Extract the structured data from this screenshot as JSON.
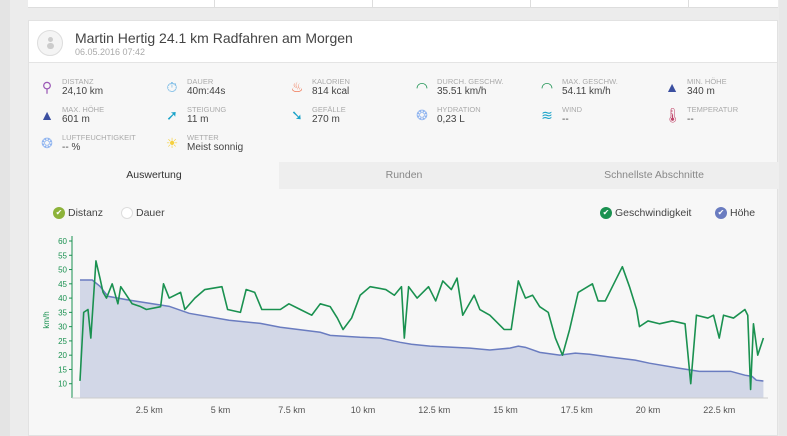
{
  "activity": {
    "user": "Martin Hertig",
    "title": "24.1 km Radfahren am Morgen",
    "date": "06.05.2016 07:42"
  },
  "stats": [
    {
      "label": "Distanz",
      "value": "24,10 km",
      "icon": "pin-icon",
      "color": "#9b59b6"
    },
    {
      "label": "Dauer",
      "value": "40m:44s",
      "icon": "stopwatch-icon",
      "color": "#5dade2"
    },
    {
      "label": "Kalorien",
      "value": "814 kcal",
      "icon": "flame-icon",
      "color": "#f0643c"
    },
    {
      "label": "Durch. Geschw.",
      "value": "35.51 km/h",
      "icon": "speedometer-icon",
      "color": "#1a9150"
    },
    {
      "label": "Max. Geschw.",
      "value": "54.11 km/h",
      "icon": "speedometer-icon",
      "color": "#1a9150"
    },
    {
      "label": "Min. Höhe",
      "value": "340 m",
      "icon": "mountain-icon",
      "color": "#3b4fa0"
    },
    {
      "label": "Max. Höhe",
      "value": "601 m",
      "icon": "mountain-icon",
      "color": "#3b4fa0"
    },
    {
      "label": "Steigung",
      "value": "11 m",
      "icon": "ascent-icon",
      "color": "#1aa3c9"
    },
    {
      "label": "Gefälle",
      "value": "270 m",
      "icon": "descent-icon",
      "color": "#1aa3c9"
    },
    {
      "label": "Hydration",
      "value": "0,23 L",
      "icon": "drops-icon",
      "color": "#8fb4f0"
    },
    {
      "label": "Wind",
      "value": "--",
      "icon": "wind-icon",
      "color": "#1aa3c9"
    },
    {
      "label": "Temperatur",
      "value": "--",
      "icon": "thermometer-icon",
      "color": "#c0456a"
    },
    {
      "label": "Luftfeuchtigkeit",
      "value": "-- %",
      "icon": "drops-icon",
      "color": "#8fb4f0"
    },
    {
      "label": "Wetter",
      "value": "Meist sonnig",
      "icon": "sun-icon",
      "color": "#f5d040"
    }
  ],
  "tabs": [
    "Auswertung",
    "Runden",
    "Schnellste Abschnitte"
  ],
  "toggles": {
    "distance": "Distanz",
    "duration": "Dauer",
    "speed": "Geschwindigkeit",
    "elevation": "Höhe"
  },
  "colors": {
    "speed": "#1a9150",
    "elevation": "#6a7cc0",
    "elevation_fill": "#d2d7e7",
    "distance_toggle": "#8db33a"
  },
  "chart_data": {
    "type": "line",
    "ylabel": "km/h",
    "ylim": [
      5,
      60
    ],
    "yticks": [
      10,
      15,
      20,
      25,
      30,
      35,
      40,
      45,
      50,
      55,
      60
    ],
    "xlim": [
      0,
      24.5
    ],
    "xticks": [
      2.5,
      5,
      7.5,
      10,
      12.5,
      15,
      17.5,
      20,
      22.5
    ],
    "xtick_labels": [
      "2.5 km",
      "5 km",
      "7.5 km",
      "10 km",
      "12.5 km",
      "15 km",
      "17.5 km",
      "20 km",
      "22.5 km"
    ],
    "elevation_range": [
      296,
      702
    ],
    "series": [
      {
        "name": "Geschwindigkeit",
        "unit": "km/h",
        "points": [
          [
            0.07,
            11
          ],
          [
            0.2,
            35
          ],
          [
            0.35,
            36
          ],
          [
            0.45,
            26
          ],
          [
            0.63,
            53
          ],
          [
            0.77,
            47
          ],
          [
            0.88,
            42
          ],
          [
            1.0,
            40
          ],
          [
            1.2,
            45
          ],
          [
            1.4,
            38
          ],
          [
            1.5,
            44
          ],
          [
            1.7,
            41
          ],
          [
            1.9,
            38
          ],
          [
            2.2,
            37
          ],
          [
            2.4,
            36
          ],
          [
            2.9,
            37
          ],
          [
            3.0,
            45
          ],
          [
            3.2,
            40
          ],
          [
            3.6,
            42
          ],
          [
            3.75,
            36
          ],
          [
            4.1,
            40
          ],
          [
            4.45,
            43
          ],
          [
            5.05,
            44
          ],
          [
            5.25,
            36
          ],
          [
            5.7,
            35
          ],
          [
            5.9,
            43
          ],
          [
            6.2,
            42
          ],
          [
            6.45,
            36
          ],
          [
            7.1,
            36
          ],
          [
            7.4,
            38
          ],
          [
            7.8,
            36
          ],
          [
            8.2,
            34
          ],
          [
            8.5,
            38
          ],
          [
            8.85,
            37
          ],
          [
            9.1,
            33
          ],
          [
            9.3,
            29
          ],
          [
            9.6,
            33
          ],
          [
            9.9,
            41
          ],
          [
            10.25,
            44
          ],
          [
            10.8,
            43
          ],
          [
            11.1,
            41
          ],
          [
            11.35,
            44
          ],
          [
            11.45,
            26
          ],
          [
            11.6,
            44
          ],
          [
            11.9,
            40
          ],
          [
            12.3,
            44
          ],
          [
            12.55,
            39
          ],
          [
            12.8,
            46
          ],
          [
            13.1,
            43
          ],
          [
            13.3,
            47
          ],
          [
            13.5,
            34
          ],
          [
            13.9,
            41
          ],
          [
            14.1,
            36
          ],
          [
            14.45,
            34
          ],
          [
            14.95,
            29
          ],
          [
            15.2,
            29
          ],
          [
            15.45,
            46
          ],
          [
            15.7,
            40
          ],
          [
            15.95,
            41
          ],
          [
            16.2,
            37
          ],
          [
            16.5,
            35
          ],
          [
            16.75,
            26
          ],
          [
            17.0,
            20
          ],
          [
            17.25,
            29
          ],
          [
            17.55,
            42
          ],
          [
            18.05,
            45
          ],
          [
            18.25,
            39
          ],
          [
            18.5,
            39
          ],
          [
            19.1,
            51
          ],
          [
            19.35,
            44
          ],
          [
            19.6,
            36
          ],
          [
            19.7,
            30
          ],
          [
            20.0,
            32
          ],
          [
            20.4,
            31
          ],
          [
            20.85,
            32
          ],
          [
            21.3,
            31
          ],
          [
            21.5,
            10
          ],
          [
            21.7,
            34
          ],
          [
            22.1,
            33
          ],
          [
            22.3,
            34
          ],
          [
            22.5,
            26
          ],
          [
            22.65,
            34
          ],
          [
            23.0,
            33
          ],
          [
            23.4,
            36
          ],
          [
            23.5,
            34
          ],
          [
            23.6,
            8
          ],
          [
            23.7,
            31
          ],
          [
            23.85,
            20
          ],
          [
            24.05,
            26
          ]
        ]
      },
      {
        "name": "Höhe",
        "unit": "m",
        "points": [
          [
            0.07,
            601
          ],
          [
            0.5,
            601
          ],
          [
            0.77,
            585
          ],
          [
            1.05,
            559
          ],
          [
            1.8,
            549
          ],
          [
            3.2,
            533
          ],
          [
            3.9,
            515
          ],
          [
            5.3,
            497
          ],
          [
            6.4,
            489
          ],
          [
            7.1,
            479
          ],
          [
            8.5,
            466
          ],
          [
            8.85,
            458
          ],
          [
            9.9,
            453
          ],
          [
            10.6,
            451
          ],
          [
            11.3,
            440
          ],
          [
            11.7,
            435
          ],
          [
            12.35,
            430
          ],
          [
            13.75,
            425
          ],
          [
            14.45,
            420
          ],
          [
            15.15,
            425
          ],
          [
            15.45,
            430
          ],
          [
            15.7,
            427
          ],
          [
            16.2,
            414
          ],
          [
            16.9,
            407
          ],
          [
            17.45,
            412
          ],
          [
            17.95,
            409
          ],
          [
            18.65,
            402
          ],
          [
            19.55,
            394
          ],
          [
            20.05,
            386
          ],
          [
            21.1,
            373
          ],
          [
            21.8,
            365
          ],
          [
            22.9,
            365
          ],
          [
            23.4,
            355
          ],
          [
            23.65,
            352
          ],
          [
            23.8,
            342
          ],
          [
            24.05,
            340
          ]
        ]
      }
    ]
  }
}
